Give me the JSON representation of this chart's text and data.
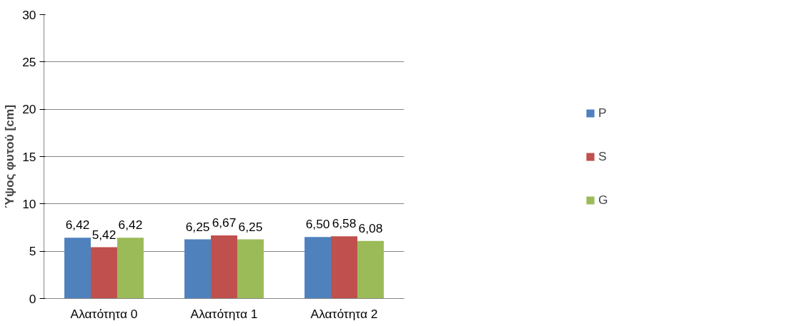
{
  "chart_data": {
    "type": "bar",
    "ylabel": "Ύψος φυτού [cm]",
    "categories": [
      "Αλατότητα 0",
      "Αλατότητα 1",
      "Αλατότητα 2"
    ],
    "series": [
      {
        "name": "P",
        "color": "#4f81bd",
        "values": [
          6.42,
          6.25,
          6.5
        ],
        "value_labels": [
          "6,42",
          "6,25",
          "6,50"
        ]
      },
      {
        "name": "S",
        "color": "#c0504d",
        "values": [
          5.42,
          6.67,
          6.58
        ],
        "value_labels": [
          "5,42",
          "6,67",
          "6,58"
        ]
      },
      {
        "name": "G",
        "color": "#9bbb59",
        "values": [
          6.42,
          6.25,
          6.08
        ],
        "value_labels": [
          "6,42",
          "6,25",
          "6,08"
        ]
      }
    ],
    "ylim": [
      0,
      30
    ],
    "yticks": [
      0,
      5,
      10,
      15,
      20,
      25,
      30
    ],
    "grid": "y",
    "legend": "right"
  }
}
